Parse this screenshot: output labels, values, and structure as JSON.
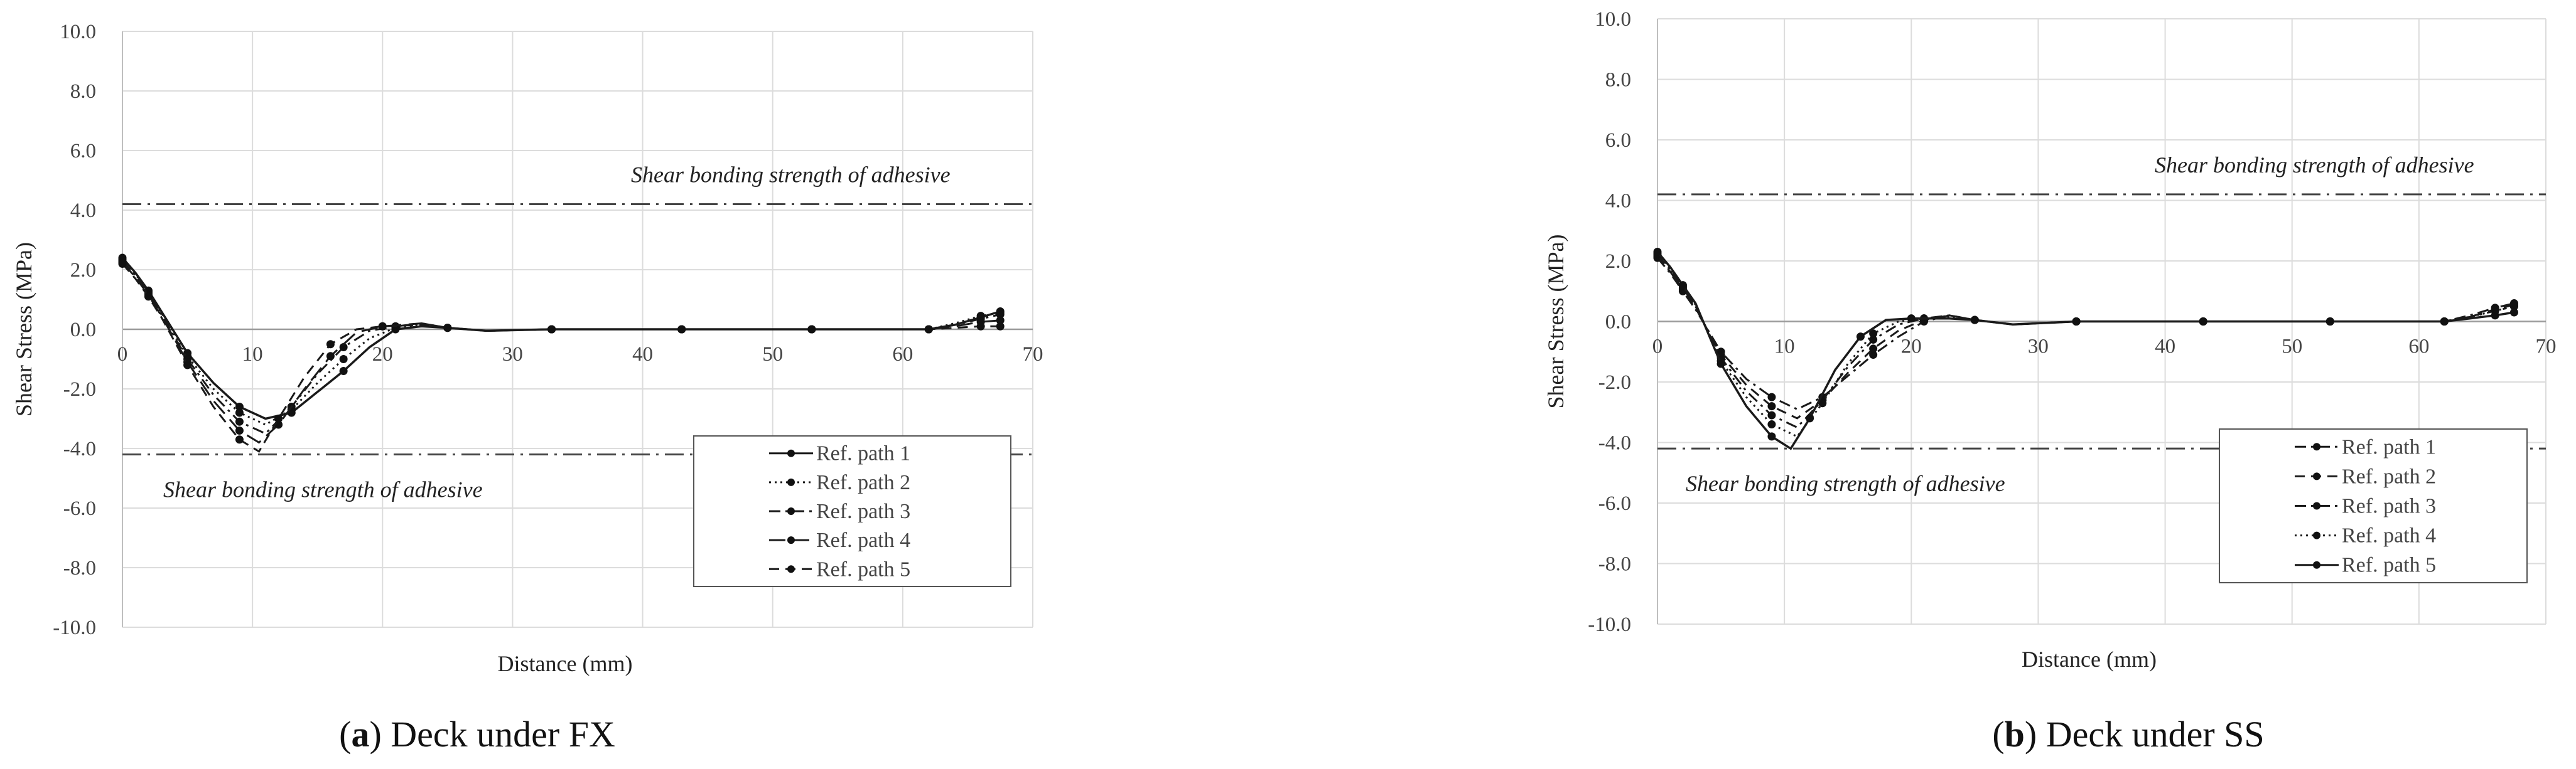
{
  "chart_data": [
    {
      "type": "line",
      "panel_letter": "a",
      "caption": "Deck under FX",
      "xlabel": "Distance (mm)",
      "ylabel": "Shear Stress (MPa)",
      "xlim": [
        0,
        70
      ],
      "ylim": [
        -10,
        10
      ],
      "xticks": [
        "0",
        "10",
        "20",
        "30",
        "40",
        "50",
        "60",
        "70"
      ],
      "yticks": [
        "10.0",
        "8.0",
        "6.0",
        "4.0",
        "2.0",
        "0.0",
        "-2.0",
        "-4.0",
        "-6.0",
        "-8.0",
        "-10.0"
      ],
      "grid": true,
      "legend_position": "bottom-right",
      "reference_lines": [
        {
          "value": 4.2,
          "label": "Shear bonding strength of adhesive",
          "label_position": "above-right"
        },
        {
          "value": -4.2,
          "label": "Shear bonding strength of adhesive",
          "label_position": "below-left"
        }
      ],
      "series": [
        {
          "name": "Ref. path 1",
          "style": "solid",
          "x": [
            0,
            1,
            2,
            3,
            5,
            7,
            9,
            11,
            13,
            15,
            17,
            19,
            21,
            23,
            25,
            28,
            33,
            38,
            43,
            48,
            53,
            58,
            62,
            64,
            66,
            67.5
          ],
          "y": [
            2.4,
            1.9,
            1.3,
            0.6,
            -0.8,
            -1.8,
            -2.6,
            -3.0,
            -2.8,
            -2.1,
            -1.4,
            -0.6,
            0.0,
            0.1,
            0.05,
            -0.05,
            0.0,
            0.0,
            0.0,
            0.0,
            0.0,
            0.0,
            0.0,
            0.15,
            0.4,
            0.6
          ]
        },
        {
          "name": "Ref. path 2",
          "style": "dotted",
          "x": [
            0,
            1,
            2,
            3,
            5,
            7,
            9,
            11,
            13,
            15,
            17,
            19,
            21,
            23,
            25,
            28,
            33,
            38,
            43,
            48,
            53,
            58,
            62,
            64,
            66,
            67.5
          ],
          "y": [
            2.35,
            1.85,
            1.25,
            0.55,
            -0.9,
            -2.0,
            -2.8,
            -3.2,
            -2.7,
            -1.8,
            -1.0,
            -0.3,
            0.05,
            0.15,
            0.05,
            -0.05,
            0.0,
            0.0,
            0.0,
            0.0,
            0.0,
            0.0,
            0.0,
            0.2,
            0.45,
            0.55
          ]
        },
        {
          "name": "Ref. path 3",
          "style": "dash-dot",
          "x": [
            0,
            1,
            2,
            3,
            5,
            7,
            9,
            11,
            13,
            15,
            17,
            19,
            21,
            23,
            25,
            28,
            33,
            38,
            43,
            48,
            53,
            58,
            62,
            64,
            66,
            67.5
          ],
          "y": [
            2.3,
            1.8,
            1.2,
            0.5,
            -1.0,
            -2.2,
            -3.1,
            -3.5,
            -2.6,
            -1.5,
            -0.6,
            -0.05,
            0.1,
            0.2,
            0.05,
            -0.05,
            0.0,
            0.0,
            0.0,
            0.0,
            0.0,
            0.0,
            0.0,
            0.15,
            0.35,
            0.5
          ]
        },
        {
          "name": "Ref. path 4",
          "style": "long-dash",
          "x": [
            0,
            1,
            2,
            3,
            5,
            7,
            9,
            10.5,
            12,
            14,
            16,
            18,
            20,
            23,
            25,
            28,
            33,
            38,
            43,
            48,
            53,
            58,
            62,
            64,
            66,
            67.5
          ],
          "y": [
            2.25,
            1.75,
            1.15,
            0.45,
            -1.1,
            -2.4,
            -3.4,
            -3.8,
            -3.2,
            -2.0,
            -0.9,
            -0.1,
            0.1,
            0.2,
            0.05,
            -0.05,
            0.0,
            0.0,
            0.0,
            0.0,
            0.0,
            0.0,
            0.0,
            0.1,
            0.25,
            0.3
          ]
        },
        {
          "name": "Ref. path 5",
          "style": "dashed",
          "x": [
            0,
            1,
            2,
            3,
            5,
            7,
            9,
            10.5,
            12,
            14,
            16,
            18,
            20,
            23,
            25,
            28,
            33,
            38,
            43,
            48,
            53,
            58,
            62,
            64,
            66,
            67.5
          ],
          "y": [
            2.2,
            1.7,
            1.1,
            0.4,
            -1.2,
            -2.6,
            -3.7,
            -4.1,
            -3.0,
            -1.6,
            -0.5,
            0.0,
            0.1,
            0.15,
            0.05,
            -0.05,
            0.0,
            0.0,
            0.0,
            0.0,
            0.0,
            0.0,
            0.0,
            0.05,
            0.1,
            0.1
          ]
        }
      ]
    },
    {
      "type": "line",
      "panel_letter": "b",
      "caption": "Deck under SS",
      "xlabel": "Distance (mm)",
      "ylabel": "Shear Stress (MPa)",
      "xlim": [
        0,
        70
      ],
      "ylim": [
        -10,
        10
      ],
      "xticks": [
        "0",
        "10",
        "20",
        "30",
        "40",
        "50",
        "60",
        "70"
      ],
      "yticks": [
        "10.0",
        "8.0",
        "6.0",
        "4.0",
        "2.0",
        "0.0",
        "-2.0",
        "-4.0",
        "-6.0",
        "-8.0",
        "-10.0"
      ],
      "grid": true,
      "legend_position": "bottom-right",
      "reference_lines": [
        {
          "value": 4.2,
          "label": "Shear bonding strength of adhesive",
          "label_position": "above-right"
        },
        {
          "value": -4.2,
          "label": "Shear bonding strength of adhesive",
          "label_position": "below-left"
        }
      ],
      "series": [
        {
          "name": "Ref. path 1",
          "style": "dash-dot",
          "x": [
            0,
            1,
            2,
            3,
            5,
            7,
            9,
            11,
            13,
            15,
            17,
            19,
            21,
            23,
            25,
            28,
            33,
            38,
            43,
            48,
            53,
            58,
            62,
            64,
            66,
            67.5
          ],
          "y": [
            2.1,
            1.6,
            1.0,
            0.4,
            -1.0,
            -1.9,
            -2.5,
            -2.9,
            -2.5,
            -1.8,
            -1.1,
            -0.5,
            0.0,
            0.2,
            0.05,
            -0.1,
            0.0,
            0.0,
            0.0,
            0.0,
            0.0,
            0.0,
            0.0,
            0.15,
            0.35,
            0.5
          ]
        },
        {
          "name": "Ref. path 2",
          "style": "dashed",
          "x": [
            0,
            1,
            2,
            3,
            5,
            7,
            9,
            11,
            13,
            15,
            17,
            19,
            21,
            23,
            25,
            28,
            33,
            38,
            43,
            48,
            53,
            58,
            62,
            64,
            66,
            67.5
          ],
          "y": [
            2.15,
            1.65,
            1.05,
            0.45,
            -1.1,
            -2.1,
            -2.8,
            -3.2,
            -2.6,
            -1.7,
            -0.9,
            -0.3,
            0.05,
            0.2,
            0.05,
            -0.1,
            0.0,
            0.0,
            0.0,
            0.0,
            0.0,
            0.0,
            0.0,
            0.15,
            0.4,
            0.55
          ]
        },
        {
          "name": "Ref. path 3",
          "style": "dash-dot",
          "x": [
            0,
            1,
            2,
            3,
            5,
            7,
            9,
            11,
            13,
            15,
            17,
            19,
            21,
            23,
            25,
            28,
            33,
            38,
            43,
            48,
            53,
            58,
            62,
            64,
            66,
            67.5
          ],
          "y": [
            2.2,
            1.7,
            1.1,
            0.5,
            -1.2,
            -2.3,
            -3.1,
            -3.5,
            -2.6,
            -1.5,
            -0.6,
            -0.1,
            0.1,
            0.2,
            0.05,
            -0.1,
            0.0,
            0.0,
            0.0,
            0.0,
            0.0,
            0.0,
            0.0,
            0.2,
            0.45,
            0.6
          ]
        },
        {
          "name": "Ref. path 4",
          "style": "dotted",
          "x": [
            0,
            1,
            2,
            3,
            5,
            7,
            9,
            11,
            13,
            15,
            17,
            19,
            21,
            23,
            25,
            28,
            33,
            38,
            43,
            48,
            53,
            58,
            62,
            64,
            66,
            67.5
          ],
          "y": [
            2.25,
            1.75,
            1.15,
            0.55,
            -1.3,
            -2.5,
            -3.4,
            -3.8,
            -2.7,
            -1.4,
            -0.4,
            0.0,
            0.1,
            0.15,
            0.05,
            -0.1,
            0.0,
            0.0,
            0.0,
            0.0,
            0.0,
            0.0,
            0.0,
            0.15,
            0.35,
            0.5
          ]
        },
        {
          "name": "Ref. path 5",
          "style": "solid",
          "x": [
            0,
            1,
            2,
            3,
            5,
            7,
            9,
            10.5,
            12,
            14,
            16,
            18,
            20,
            23,
            25,
            28,
            33,
            38,
            43,
            48,
            53,
            58,
            62,
            64,
            66,
            67.5
          ],
          "y": [
            2.3,
            1.8,
            1.2,
            0.6,
            -1.4,
            -2.8,
            -3.8,
            -4.2,
            -3.2,
            -1.6,
            -0.5,
            0.05,
            0.1,
            0.1,
            0.05,
            -0.1,
            0.0,
            0.0,
            0.0,
            0.0,
            0.0,
            0.0,
            0.0,
            0.1,
            0.2,
            0.3
          ]
        }
      ]
    }
  ]
}
